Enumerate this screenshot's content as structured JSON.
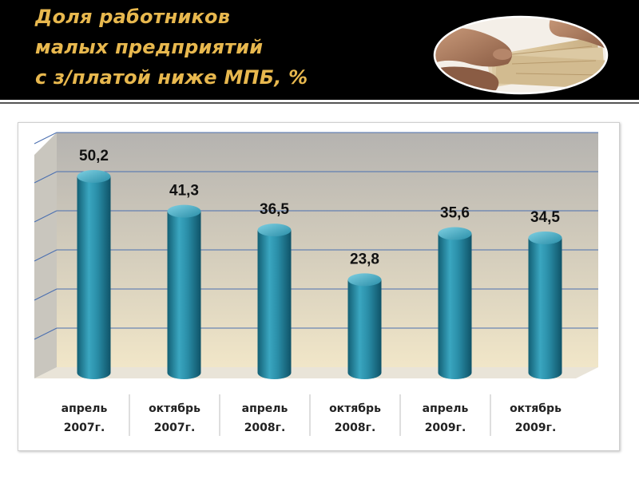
{
  "header": {
    "title_lines": [
      "Доля работников",
      "малых предприятий",
      "с з/платой ниже МПБ, %"
    ]
  },
  "colors": {
    "header_bg": "#000000",
    "title": "#e8b84e",
    "bar": "#2a8ea8",
    "plot_bg_top": "#b5b3b0",
    "plot_bg_bottom": "#f1e6c8",
    "grid": "#4a6fb0"
  },
  "chart_data": {
    "type": "bar",
    "title": "",
    "categories": [
      [
        "апрель",
        "2007г."
      ],
      [
        "октябрь",
        "2007г."
      ],
      [
        "апрель",
        "2008г."
      ],
      [
        "октябрь",
        "2008г."
      ],
      [
        "апрель",
        "2009г."
      ],
      [
        "октябрь",
        "2009г."
      ]
    ],
    "values": [
      50.2,
      41.3,
      36.5,
      23.8,
      35.6,
      34.5
    ],
    "value_labels": [
      "50,2",
      "41,3",
      "36,5",
      "23,8",
      "35,6",
      "34,5"
    ],
    "xlabel": "",
    "ylabel": "",
    "ylim": [
      0,
      60
    ],
    "grid": true,
    "style": "3d-cylinder"
  }
}
